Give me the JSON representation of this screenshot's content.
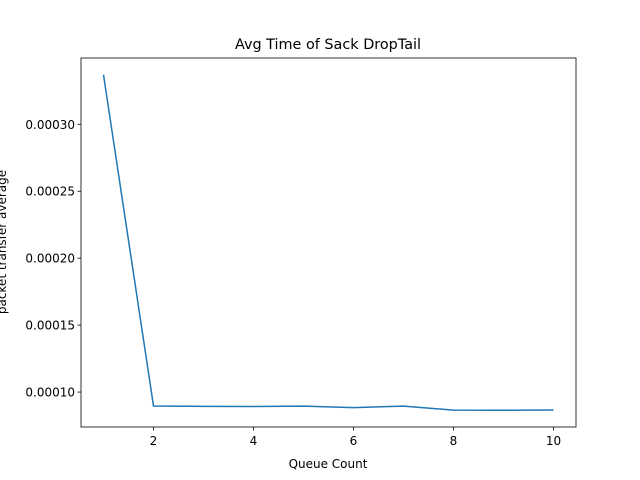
{
  "chart_data": {
    "type": "line",
    "title": "Avg Time of Sack DropTail",
    "x_label": "Queue Count",
    "y_label": "packet transfer average",
    "x": [
      1,
      2,
      3,
      4,
      5,
      6,
      7,
      8,
      9,
      10
    ],
    "values": [
      0.000337,
      8.96e-05,
      8.93e-05,
      8.92e-05,
      8.95e-05,
      8.84e-05,
      8.95e-05,
      8.65e-05,
      8.64e-05,
      8.66e-05
    ],
    "color": "#1f77b4",
    "xlim": [
      0.55,
      10.45
    ],
    "xticks": [
      2,
      4,
      6,
      8,
      10
    ],
    "ylim": [
      7.39e-05,
      0.0003495
    ],
    "yticks": [
      {
        "value": 0.0001,
        "label": "0.00010"
      },
      {
        "value": 0.00015,
        "label": "0.00015"
      },
      {
        "value": 0.0002,
        "label": "0.00020"
      },
      {
        "value": 0.00025,
        "label": "0.00025"
      },
      {
        "value": 0.0003,
        "label": "0.00030"
      }
    ],
    "grid": false
  }
}
